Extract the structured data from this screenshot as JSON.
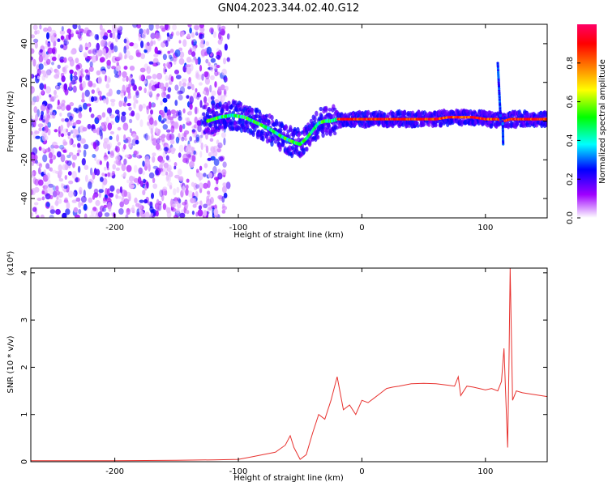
{
  "title": "GN04.2023.344.02.40.G12",
  "chart_data": [
    {
      "type": "heatmap",
      "xlabel": "Height of straight line (km)",
      "ylabel": "Frequency (Hz)",
      "xlim": [
        -268,
        150
      ],
      "ylim": [
        -50,
        50
      ],
      "xticks": [
        -200,
        -100,
        0,
        100
      ],
      "yticks": [
        -40,
        -20,
        0,
        20,
        40
      ],
      "colorbar": {
        "label": "Normalized spectral amplitude",
        "range": [
          0,
          1
        ],
        "ticks": [
          0.0,
          0.2,
          0.4,
          0.6,
          0.8
        ],
        "tick_labels": [
          "0.0",
          "0.2",
          "0.4",
          "0.6",
          "0.8"
        ],
        "colormap": [
          "#ffffff",
          "#9f00ff",
          "#0000ff",
          "#00ffff",
          "#00ff00",
          "#ffff00",
          "#ff7f00",
          "#ff0000",
          "#ff0066"
        ]
      },
      "ridge": {
        "x": [
          -125,
          -115,
          -105,
          -95,
          -85,
          -75,
          -65,
          -55,
          -50,
          -45,
          -40,
          -35,
          -30,
          -25,
          -20,
          -10,
          0,
          20,
          40,
          60,
          70,
          80,
          90,
          100,
          110,
          115,
          120,
          150
        ],
        "y": [
          0,
          2,
          3,
          2,
          -1,
          -4,
          -8,
          -11,
          -12,
          -9,
          -5,
          -1,
          0,
          0,
          1,
          1,
          1,
          1,
          1,
          1,
          2,
          2,
          2,
          1,
          1,
          0,
          1,
          1
        ]
      }
    },
    {
      "type": "line",
      "xlabel": "Height of straight line (km)",
      "ylabel": "SNR (10 * v/v)",
      "y_multiplier": "(x10⁴)",
      "xlim": [
        -268,
        150
      ],
      "ylim": [
        0,
        4.1
      ],
      "xticks": [
        -200,
        -100,
        0,
        100
      ],
      "yticks": [
        0,
        1,
        2,
        3,
        4
      ],
      "color": "#e8322f",
      "series": [
        {
          "x": [
            -268,
            -250,
            -220,
            -200,
            -150,
            -120,
            -100,
            -90,
            -80,
            -70,
            -62,
            -58,
            -55,
            -50,
            -45,
            -40,
            -35,
            -30,
            -25,
            -20,
            -15,
            -10,
            -5,
            0,
            5,
            10,
            15,
            20,
            25,
            30,
            40,
            50,
            60,
            70,
            75,
            78,
            80,
            85,
            90,
            95,
            100,
            105,
            110,
            113,
            115,
            117,
            118,
            119,
            120,
            122,
            125,
            130,
            140,
            150
          ],
          "y": [
            0.02,
            0.02,
            0.02,
            0.02,
            0.03,
            0.04,
            0.05,
            0.1,
            0.15,
            0.2,
            0.35,
            0.55,
            0.3,
            0.05,
            0.15,
            0.6,
            1.0,
            0.9,
            1.3,
            1.8,
            1.1,
            1.2,
            1.0,
            1.3,
            1.25,
            1.35,
            1.45,
            1.55,
            1.58,
            1.6,
            1.65,
            1.66,
            1.65,
            1.62,
            1.6,
            1.8,
            1.4,
            1.6,
            1.58,
            1.55,
            1.52,
            1.55,
            1.5,
            1.7,
            2.4,
            1.0,
            0.3,
            2.0,
            4.1,
            1.3,
            1.5,
            1.46,
            1.42,
            1.38
          ]
        }
      ]
    }
  ]
}
